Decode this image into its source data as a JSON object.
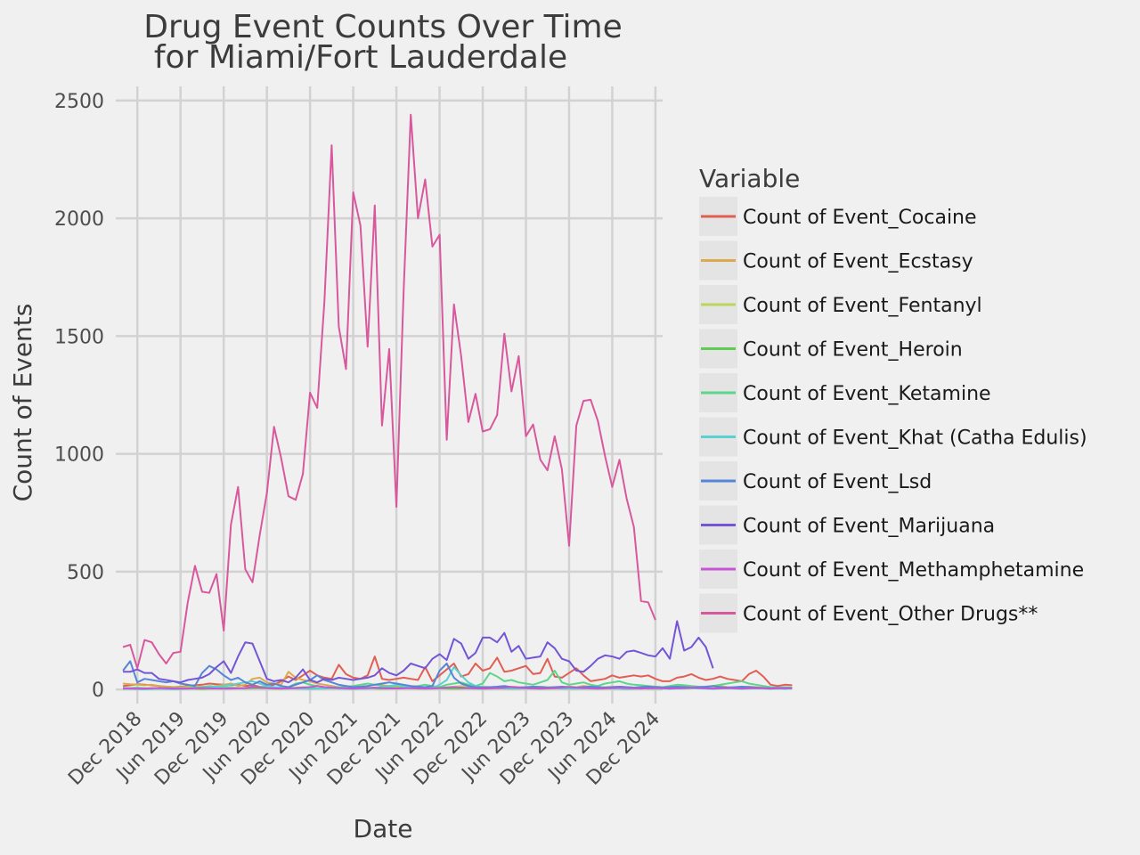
{
  "chart_data": {
    "type": "line",
    "title_lines": [
      "Drug Event Counts Over Time",
      "for Miami/Fort Lauderdale"
    ],
    "xlabel": "Date",
    "ylabel": "Count of Events",
    "ylim": [
      -60,
      2560
    ],
    "yticks": [
      0,
      500,
      1000,
      1500,
      2000,
      2500
    ],
    "x_range": [
      "2018-09",
      "2025-01"
    ],
    "xticks": [
      {
        "date": "2018-12",
        "label": "Dec 2018"
      },
      {
        "date": "2019-06",
        "label": "Jun 2019"
      },
      {
        "date": "2019-12",
        "label": "Dec 2019"
      },
      {
        "date": "2020-06",
        "label": "Jun 2020"
      },
      {
        "date": "2020-12",
        "label": "Dec 2020"
      },
      {
        "date": "2021-06",
        "label": "Jun 2021"
      },
      {
        "date": "2021-12",
        "label": "Dec 2021"
      },
      {
        "date": "2022-06",
        "label": "Jun 2022"
      },
      {
        "date": "2022-12",
        "label": "Dec 2022"
      },
      {
        "date": "2023-06",
        "label": "Jun 2023"
      },
      {
        "date": "2023-12",
        "label": "Dec 2023"
      },
      {
        "date": "2024-06",
        "label": "Jun 2024"
      },
      {
        "date": "2024-12",
        "label": "Dec 2024"
      }
    ],
    "grid": true,
    "legend": {
      "title": "Variable",
      "position": "right"
    },
    "x_start": "2018-10",
    "x_step": "month",
    "series": [
      {
        "name": "Count of Event_Cocaine",
        "color": "#e15e52",
        "values": [
          15,
          18,
          22,
          20,
          18,
          15,
          12,
          10,
          12,
          15,
          18,
          20,
          25,
          22,
          20,
          18,
          20,
          15,
          18,
          12,
          10,
          20,
          35,
          55,
          40,
          60,
          80,
          60,
          50,
          45,
          105,
          65,
          50,
          45,
          60,
          140,
          45,
          40,
          45,
          50,
          45,
          40,
          95,
          35,
          60,
          85,
          110,
          55,
          65,
          110,
          80,
          90,
          135,
          75,
          80,
          90,
          100,
          65,
          70,
          130,
          55,
          50,
          70,
          90,
          60,
          35,
          40,
          45,
          60,
          50,
          55,
          60,
          55,
          60,
          45,
          35,
          35,
          50,
          55,
          65,
          50,
          40,
          45,
          55,
          45,
          40,
          35,
          65,
          80,
          55,
          20,
          15,
          20,
          18
        ]
      },
      {
        "name": "Count of Event_Ecstasy",
        "color": "#dca94e",
        "values": [
          25,
          22,
          20,
          18,
          20,
          15,
          12,
          10,
          10,
          12,
          15,
          10,
          10,
          15,
          20,
          25,
          15,
          20,
          45,
          50,
          30,
          25,
          20,
          75,
          50,
          40,
          35,
          25,
          20,
          15,
          10,
          8,
          10,
          12,
          15,
          20,
          18,
          15,
          12,
          15,
          10,
          8,
          10,
          12,
          10,
          8,
          10,
          12,
          10,
          8,
          12,
          10,
          8,
          10,
          12,
          10,
          8,
          10,
          12,
          10,
          8,
          10,
          12,
          10,
          15,
          12,
          10,
          8,
          10,
          12,
          10,
          8,
          10,
          8,
          12,
          10,
          8,
          10,
          12,
          10,
          8,
          10,
          12,
          15,
          10,
          8,
          10,
          12,
          10,
          8,
          6,
          5,
          6,
          5
        ]
      },
      {
        "name": "Count of Event_Fentanyl",
        "color": "#bcd65c",
        "values": [
          2,
          3,
          4,
          5,
          6,
          5,
          4,
          5,
          6,
          8,
          10,
          12,
          10,
          8,
          6,
          5,
          4,
          6,
          8,
          6,
          5,
          4,
          5,
          6,
          8,
          10,
          8,
          6,
          5,
          6,
          8,
          10,
          12,
          10,
          8,
          6,
          5,
          6,
          8,
          10,
          12,
          10,
          8,
          6,
          8,
          10,
          12,
          15,
          12,
          10,
          8,
          6,
          8,
          10,
          8,
          6,
          8,
          10,
          12,
          10,
          8,
          6,
          8,
          10,
          8,
          6,
          8,
          10,
          12,
          10,
          8,
          6,
          8,
          10,
          8,
          6,
          8,
          10,
          8,
          6,
          5,
          6,
          8,
          10,
          8,
          6,
          5,
          4,
          5,
          6,
          5,
          4,
          5,
          4
        ]
      },
      {
        "name": "Count of Event_Heroin",
        "color": "#5fcb52",
        "values": [
          5,
          6,
          5,
          4,
          3,
          4,
          5,
          6,
          5,
          4,
          3,
          2,
          3,
          4,
          5,
          6,
          5,
          4,
          5,
          6,
          5,
          4,
          3,
          4,
          5,
          6,
          5,
          4,
          5,
          6,
          5,
          4,
          5,
          6,
          5,
          4,
          3,
          4,
          5,
          6,
          5,
          4,
          3,
          4,
          5,
          4,
          3,
          4,
          5,
          4,
          3,
          4,
          5,
          4,
          3,
          4,
          5,
          4,
          3,
          4,
          5,
          4,
          3,
          4,
          5,
          4,
          3,
          4,
          5,
          4,
          3,
          4,
          5,
          4,
          3,
          4,
          5,
          4,
          3,
          4,
          5,
          4,
          3,
          4,
          5,
          4,
          3,
          4,
          5,
          4,
          3,
          4,
          5,
          4
        ]
      },
      {
        "name": "Count of Event_Ketamine",
        "color": "#5bd68a",
        "values": [
          5,
          6,
          8,
          5,
          4,
          3,
          2,
          4,
          5,
          6,
          8,
          10,
          15,
          12,
          10,
          8,
          6,
          5,
          8,
          10,
          12,
          8,
          6,
          10,
          25,
          30,
          20,
          15,
          10,
          8,
          10,
          12,
          15,
          20,
          25,
          20,
          15,
          10,
          8,
          10,
          12,
          15,
          20,
          15,
          10,
          20,
          25,
          30,
          20,
          15,
          25,
          70,
          55,
          35,
          40,
          30,
          25,
          20,
          30,
          40,
          80,
          30,
          20,
          25,
          30,
          20,
          15,
          25,
          30,
          35,
          25,
          20,
          18,
          15,
          12,
          10,
          15,
          20,
          18,
          15,
          12,
          10,
          15,
          20,
          25,
          30,
          35,
          25,
          20,
          15,
          10,
          8,
          10,
          8
        ]
      },
      {
        "name": "Count of Event_Khat (Catha Edulis)",
        "color": "#59d1d1",
        "values": [
          2,
          3,
          2,
          1,
          2,
          3,
          2,
          1,
          2,
          3,
          5,
          8,
          10,
          12,
          15,
          20,
          25,
          30,
          35,
          25,
          15,
          10,
          8,
          5,
          4,
          3,
          2,
          3,
          4,
          5,
          4,
          3,
          2,
          3,
          4,
          5,
          10,
          15,
          20,
          15,
          10,
          8,
          6,
          5,
          20,
          40,
          95,
          60,
          30,
          15,
          10,
          8,
          6,
          5,
          4,
          3,
          5,
          8,
          10,
          8,
          6,
          5,
          4,
          3,
          4,
          5,
          6,
          5,
          4,
          3,
          2,
          3,
          4,
          5,
          4,
          3,
          2,
          3,
          4,
          5,
          4,
          3,
          2,
          3,
          4,
          3,
          2,
          3,
          4,
          3,
          2,
          3,
          2,
          3
        ]
      },
      {
        "name": "Count of Event_Lsd",
        "color": "#5585d6",
        "values": [
          80,
          120,
          30,
          45,
          40,
          35,
          30,
          35,
          25,
          20,
          15,
          70,
          100,
          85,
          60,
          40,
          50,
          30,
          20,
          35,
          20,
          25,
          15,
          10,
          20,
          30,
          40,
          60,
          40,
          30,
          20,
          15,
          10,
          12,
          15,
          20,
          25,
          30,
          25,
          20,
          15,
          12,
          10,
          15,
          80,
          110,
          50,
          25,
          15,
          10,
          8,
          10,
          12,
          15,
          10,
          8,
          10,
          12,
          10,
          8,
          10,
          12,
          10,
          8,
          10,
          12,
          10,
          8,
          10,
          12,
          10,
          8,
          10,
          12,
          10,
          8,
          10,
          12,
          10,
          8,
          10,
          12,
          15,
          10,
          8,
          10,
          12,
          10,
          8,
          6,
          5,
          6,
          5,
          6
        ]
      },
      {
        "name": "Count of Event_Marijuana",
        "color": "#7355d6",
        "values": [
          75,
          75,
          85,
          70,
          70,
          45,
          40,
          35,
          30,
          40,
          45,
          50,
          65,
          95,
          120,
          70,
          140,
          200,
          195,
          120,
          45,
          35,
          40,
          30,
          50,
          85,
          40,
          30,
          45,
          40,
          50,
          45,
          40,
          45,
          50,
          60,
          90,
          70,
          60,
          80,
          110,
          100,
          90,
          130,
          150,
          125,
          215,
          195,
          130,
          155,
          220,
          220,
          200,
          240,
          160,
          185,
          130,
          135,
          140,
          200,
          175,
          130,
          120,
          80,
          75,
          100,
          130,
          145,
          140,
          130,
          160,
          165,
          155,
          145,
          140,
          175,
          130,
          290,
          165,
          180,
          220,
          180,
          90
        ]
      },
      {
        "name": "Count of Event_Methamphetamine",
        "color": "#c753d6",
        "values": [
          5,
          4,
          3,
          4,
          5,
          6,
          5,
          4,
          3,
          4,
          5,
          6,
          5,
          4,
          3,
          4,
          5,
          6,
          10,
          8,
          6,
          5,
          4,
          5,
          6,
          8,
          10,
          15,
          10,
          8,
          6,
          5,
          4,
          5,
          6,
          8,
          6,
          5,
          4,
          5,
          6,
          5,
          4,
          5,
          6,
          8,
          10,
          8,
          6,
          5,
          4,
          5,
          6,
          8,
          10,
          8,
          6,
          5,
          4,
          5,
          6,
          8,
          10,
          8,
          6,
          5,
          4,
          5,
          6,
          8,
          6,
          5,
          4,
          5,
          6,
          5,
          4,
          5,
          6,
          8,
          6,
          5,
          4,
          5,
          6,
          5,
          4,
          5,
          6,
          5,
          4,
          5,
          6,
          5
        ]
      },
      {
        "name": "Count of Event_Other Drugs**",
        "color": "#d8589e",
        "values": [
          180,
          190,
          90,
          210,
          200,
          150,
          110,
          155,
          160,
          370,
          525,
          415,
          410,
          490,
          250,
          700,
          860,
          510,
          455,
          655,
          835,
          1115,
          980,
          820,
          805,
          915,
          1260,
          1195,
          1650,
          2310,
          1540,
          1360,
          2110,
          1970,
          1455,
          2055,
          1120,
          1445,
          775,
          1690,
          2440,
          2000,
          2165,
          1880,
          1930,
          1060,
          1635,
          1415,
          1135,
          1255,
          1095,
          1105,
          1165,
          1510,
          1265,
          1415,
          1075,
          1125,
          975,
          930,
          1075,
          935,
          610,
          1120,
          1225,
          1230,
          1140,
          990,
          860,
          975,
          810,
          690,
          375,
          370,
          295
        ]
      }
    ]
  }
}
